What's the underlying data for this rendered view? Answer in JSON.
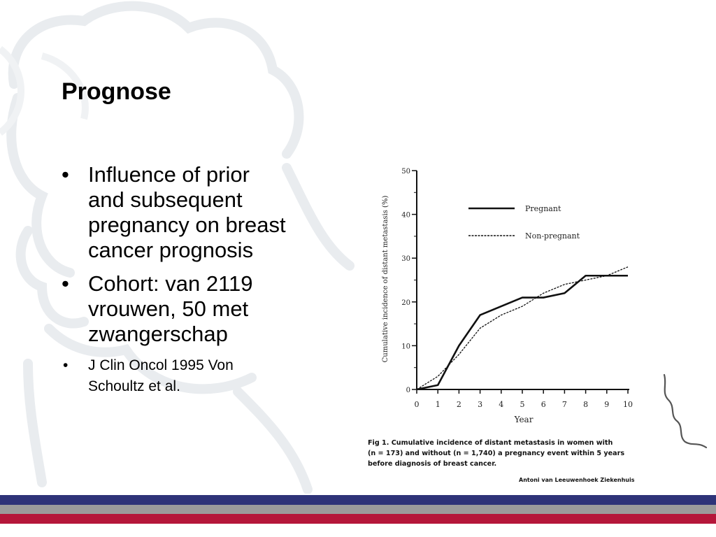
{
  "slide": {
    "title": "Prognose",
    "bullets": [
      {
        "lines": [
          "Influence of prior",
          "and subsequent",
          "pregnancy on breast",
          "cancer prognosis"
        ]
      },
      {
        "lines": [
          "Cohort: van 2119",
          "vrouwen, 50 met",
          "zwangerschap"
        ]
      },
      {
        "lines": [
          "J Clin Oncol 1995 Von",
          "Schoultz et al."
        ]
      }
    ],
    "footer_institution": "Antoni van Leeuwenhoek Ziekenhuis"
  },
  "colors": {
    "stripe_blue": "#2e3378",
    "stripe_gray": "#9b9b9b",
    "stripe_red": "#b5173a",
    "decoration": "#e9ecef"
  },
  "figure": {
    "caption_lines": [
      "Fig 1.   Cumulative incidence of distant metastasis in women with",
      "(n = 173) and without (n = 1,740) a pregnancy event within 5 years",
      "before diagnosis of breast cancer."
    ]
  },
  "chart_data": {
    "type": "line",
    "xlabel": "Year",
    "ylabel": "Cumulative incidence of distant metastasis (%)",
    "xlim": [
      0,
      10
    ],
    "ylim": [
      0,
      50
    ],
    "x_ticks": [
      "0",
      "1",
      "2",
      "3",
      "4",
      "5",
      "6",
      "7",
      "8",
      "9",
      "10"
    ],
    "y_ticks": [
      "0",
      "10",
      "20",
      "30",
      "40",
      "50"
    ],
    "legend_position": "top-right",
    "series": [
      {
        "name": "Pregnant",
        "style": "solid",
        "x": [
          0,
          1,
          2,
          3,
          4,
          5,
          6,
          7,
          8,
          9,
          10
        ],
        "y": [
          0,
          1,
          10,
          17,
          19,
          21,
          21,
          22,
          26,
          26,
          26
        ]
      },
      {
        "name": "Non-pregnant",
        "style": "dashed",
        "x": [
          0,
          1,
          2,
          3,
          4,
          5,
          6,
          7,
          8,
          9,
          10
        ],
        "y": [
          0,
          3,
          8,
          14,
          17,
          19,
          22,
          24,
          25,
          26,
          28
        ]
      }
    ]
  }
}
